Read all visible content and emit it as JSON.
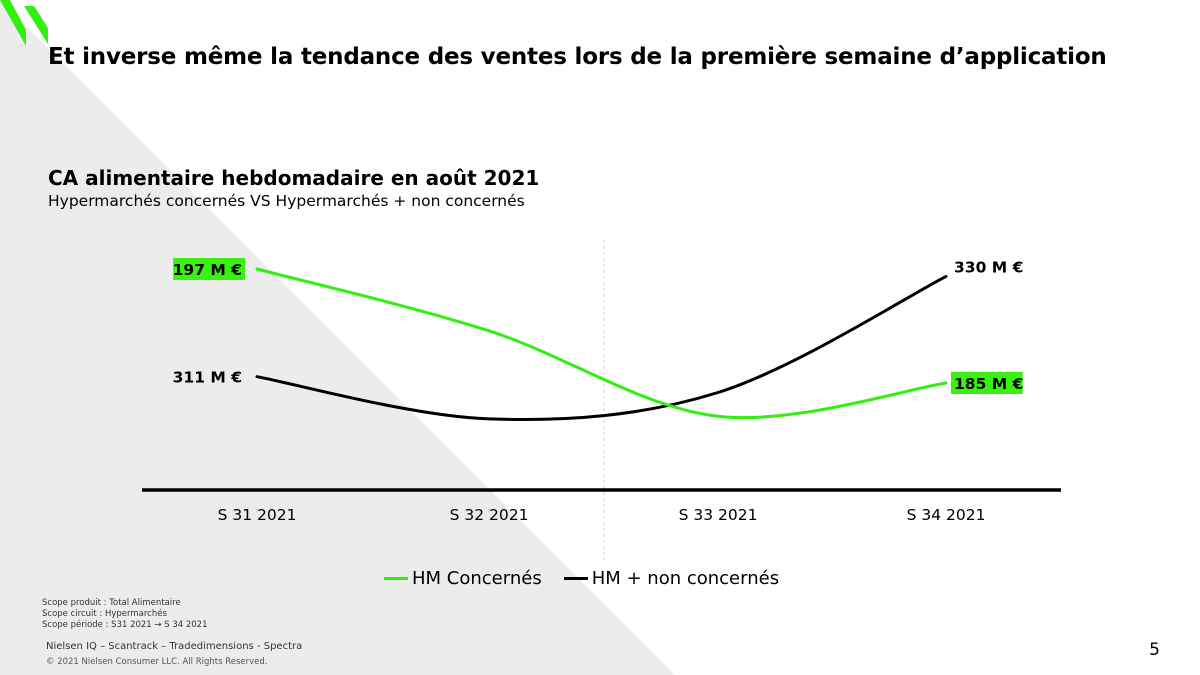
{
  "slide": {
    "headline": "Et inverse même la tendance des ventes lors de la première semaine d’application",
    "page_number": "5",
    "colors": {
      "accent_green": "#33ee11",
      "label_highlight": "#39f20f",
      "dark": "#000000",
      "triangle_gray": "#ececec"
    }
  },
  "logo": {
    "icon": "brand-logo-icon"
  },
  "chart_data": {
    "type": "line",
    "title": "CA alimentaire hebdomadaire en août 2021",
    "subtitle": "Hypermarchés concernés VS Hypermarchés + non concernés",
    "categories": [
      "S 31 2021",
      "S 32 2021",
      "S 33 2021",
      "S 34 2021"
    ],
    "series": [
      {
        "name": "HM Concernés",
        "color": "#33ee11",
        "values": [
          197,
          190.5,
          181.5,
          185
        ],
        "end_labels": [
          "197 M €",
          "185 M €"
        ],
        "labels_highlighted": true,
        "display_range": [
          179,
          199
        ]
      },
      {
        "name": "HM + non concernés",
        "color": "#000000",
        "values": [
          311,
          303,
          308,
          330
        ],
        "end_labels": [
          "311 M €",
          "330 M €"
        ],
        "labels_highlighted": false,
        "display_range": [
          299,
          335
        ]
      }
    ],
    "legend_position": "bottom",
    "grid": false,
    "y_axis_visible": false
  },
  "footer": {
    "notes": [
      "Scope produit : Total Alimentaire",
      "Scope circuit : Hypermarchés",
      "Scope période : S31 2021 → S 34 2021"
    ],
    "source": "Nielsen IQ – Scantrack – Tradedimensions - Spectra",
    "copyright": "© 2021 Nielsen Consumer LLC. All Rights Reserved."
  }
}
